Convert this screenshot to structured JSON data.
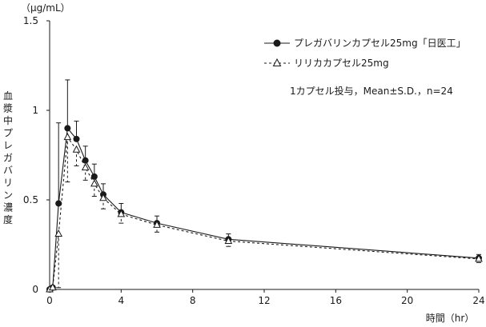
{
  "chart_data": {
    "type": "line",
    "ylabel": "血漿中プレガバリン濃度",
    "yunit": "（μg/mL）",
    "xlabel": "時間（hr）",
    "xlim": [
      0,
      24
    ],
    "ylim": [
      0,
      1.5
    ],
    "x_ticks": [
      0,
      4,
      8,
      12,
      16,
      20,
      24
    ],
    "y_ticks": [
      0,
      0.5,
      1,
      1.5
    ],
    "x_tick_labels": [
      "0",
      "4",
      "8",
      "12",
      "16",
      "20",
      "24"
    ],
    "y_tick_labels": [
      "0",
      "0.5",
      "1",
      "1.5"
    ],
    "annotation": "1カプセル投与，Mean±S.D.，n=24",
    "legend_position": "top-right",
    "series": [
      {
        "name": "プレガバリンカプセル25mg「日医工」",
        "style": "solid",
        "marker": "filled-circle",
        "color": "#1a1a1a",
        "x": [
          0,
          0.17,
          0.5,
          1,
          1.5,
          2,
          2.5,
          3,
          4,
          6,
          10,
          24
        ],
        "y": [
          0,
          0.01,
          0.48,
          0.9,
          0.84,
          0.72,
          0.63,
          0.53,
          0.43,
          0.37,
          0.28,
          0.175
        ],
        "err": [
          0,
          0.01,
          0.45,
          0.27,
          0.1,
          0.08,
          0.07,
          0.06,
          0.05,
          0.04,
          0.03,
          0.02
        ]
      },
      {
        "name": "リリカカプセル25mg",
        "style": "dashed",
        "marker": "open-triangle",
        "color": "#1a1a1a",
        "x": [
          0,
          0.17,
          0.5,
          1,
          1.5,
          2,
          2.5,
          3,
          4,
          6,
          10,
          24
        ],
        "y": [
          0,
          0.01,
          0.31,
          0.85,
          0.78,
          0.68,
          0.59,
          0.51,
          0.42,
          0.36,
          0.27,
          0.17
        ],
        "err": [
          0,
          0.01,
          0.3,
          0.25,
          0.09,
          0.07,
          0.07,
          0.06,
          0.05,
          0.04,
          0.03,
          0.02
        ]
      }
    ]
  }
}
